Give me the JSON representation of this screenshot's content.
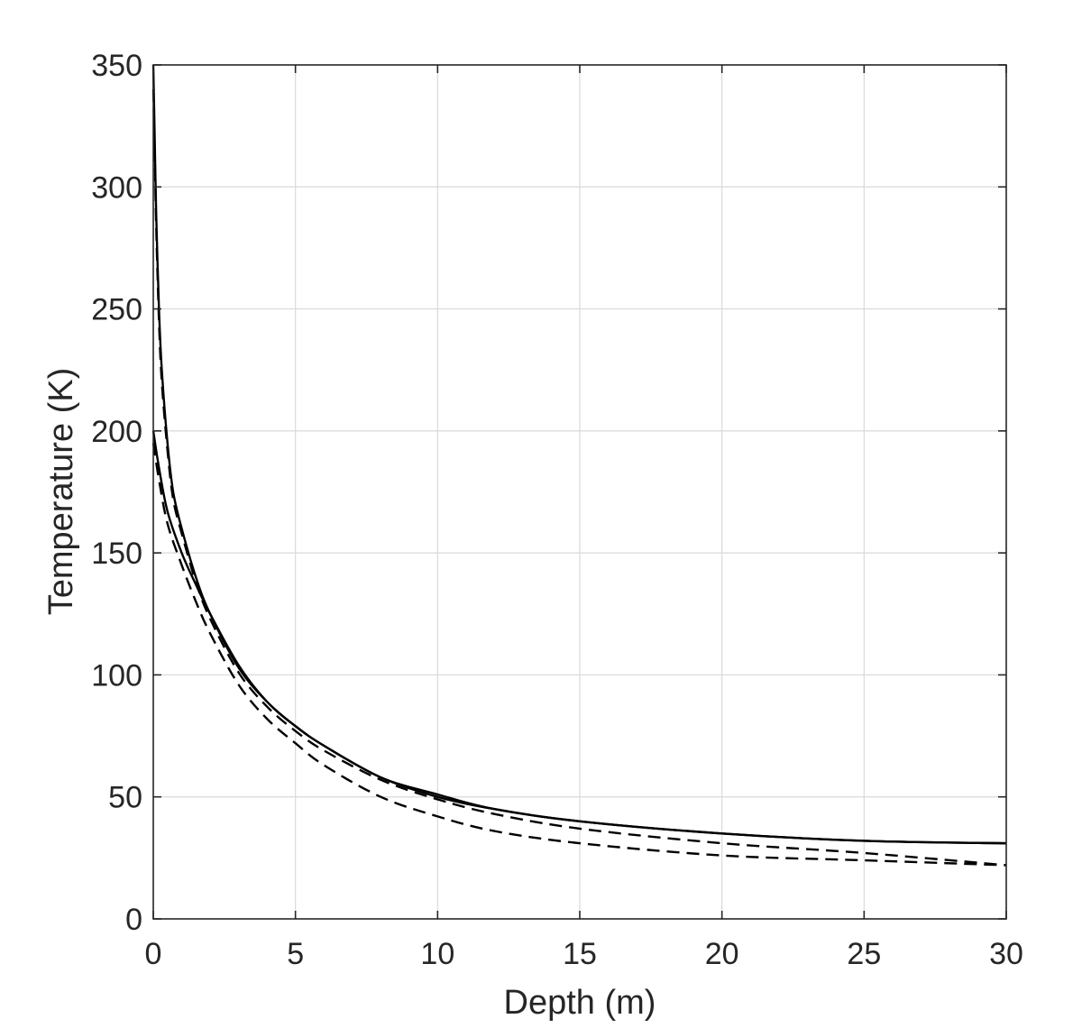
{
  "chart_data": {
    "type": "line",
    "title": "",
    "xlabel": "Depth (m)",
    "ylabel": "Temperature (K)",
    "xlim": [
      0,
      30
    ],
    "ylim": [
      0,
      350
    ],
    "xticks": [
      0,
      5,
      10,
      15,
      20,
      25,
      30
    ],
    "yticks": [
      0,
      50,
      100,
      150,
      200,
      250,
      300,
      350
    ],
    "x_tick_labels": [
      "0",
      "5",
      "10",
      "15",
      "20",
      "25",
      "30"
    ],
    "y_tick_labels": [
      "0",
      "50",
      "100",
      "150",
      "200",
      "250",
      "300",
      "350"
    ],
    "grid": true,
    "legend": "none",
    "series": [
      {
        "style": "solid",
        "x": [
          0,
          0.05,
          0.1,
          0.2,
          0.3,
          0.5,
          0.7,
          1,
          1.5,
          2,
          3,
          4,
          5,
          6,
          8,
          10,
          12,
          15,
          20,
          25,
          30
        ],
        "values": [
          350,
          320,
          290,
          250,
          225,
          195,
          175,
          160,
          140,
          125,
          103,
          89,
          79,
          71,
          58,
          51,
          45,
          40,
          35,
          32,
          31
        ]
      },
      {
        "style": "dashed",
        "x": [
          0,
          0.05,
          0.1,
          0.2,
          0.3,
          0.5,
          0.7,
          1,
          1.5,
          2,
          3,
          4,
          5,
          6,
          8,
          10,
          12,
          15,
          20,
          25,
          30
        ],
        "values": [
          340,
          315,
          285,
          245,
          220,
          192,
          172,
          158,
          138,
          123,
          101,
          87,
          77,
          69,
          57,
          49,
          43,
          37,
          31,
          27,
          22
        ]
      },
      {
        "style": "solid",
        "x": [
          0,
          0.2,
          0.5,
          1,
          1.5,
          2,
          3,
          4,
          5,
          6,
          8,
          10,
          12,
          15,
          20,
          25,
          30
        ],
        "values": [
          200,
          185,
          167,
          150,
          137,
          125,
          104,
          89,
          79,
          71,
          58,
          50,
          45,
          40,
          35,
          32,
          31
        ]
      },
      {
        "style": "dashed",
        "x": [
          0,
          0.2,
          0.5,
          1,
          1.5,
          2,
          3,
          4,
          5,
          6,
          8,
          10,
          12,
          15,
          20,
          25,
          30
        ],
        "values": [
          195,
          180,
          162,
          145,
          130,
          117,
          96,
          82,
          72,
          63,
          50,
          42,
          36,
          31,
          26,
          24,
          22
        ]
      }
    ]
  }
}
